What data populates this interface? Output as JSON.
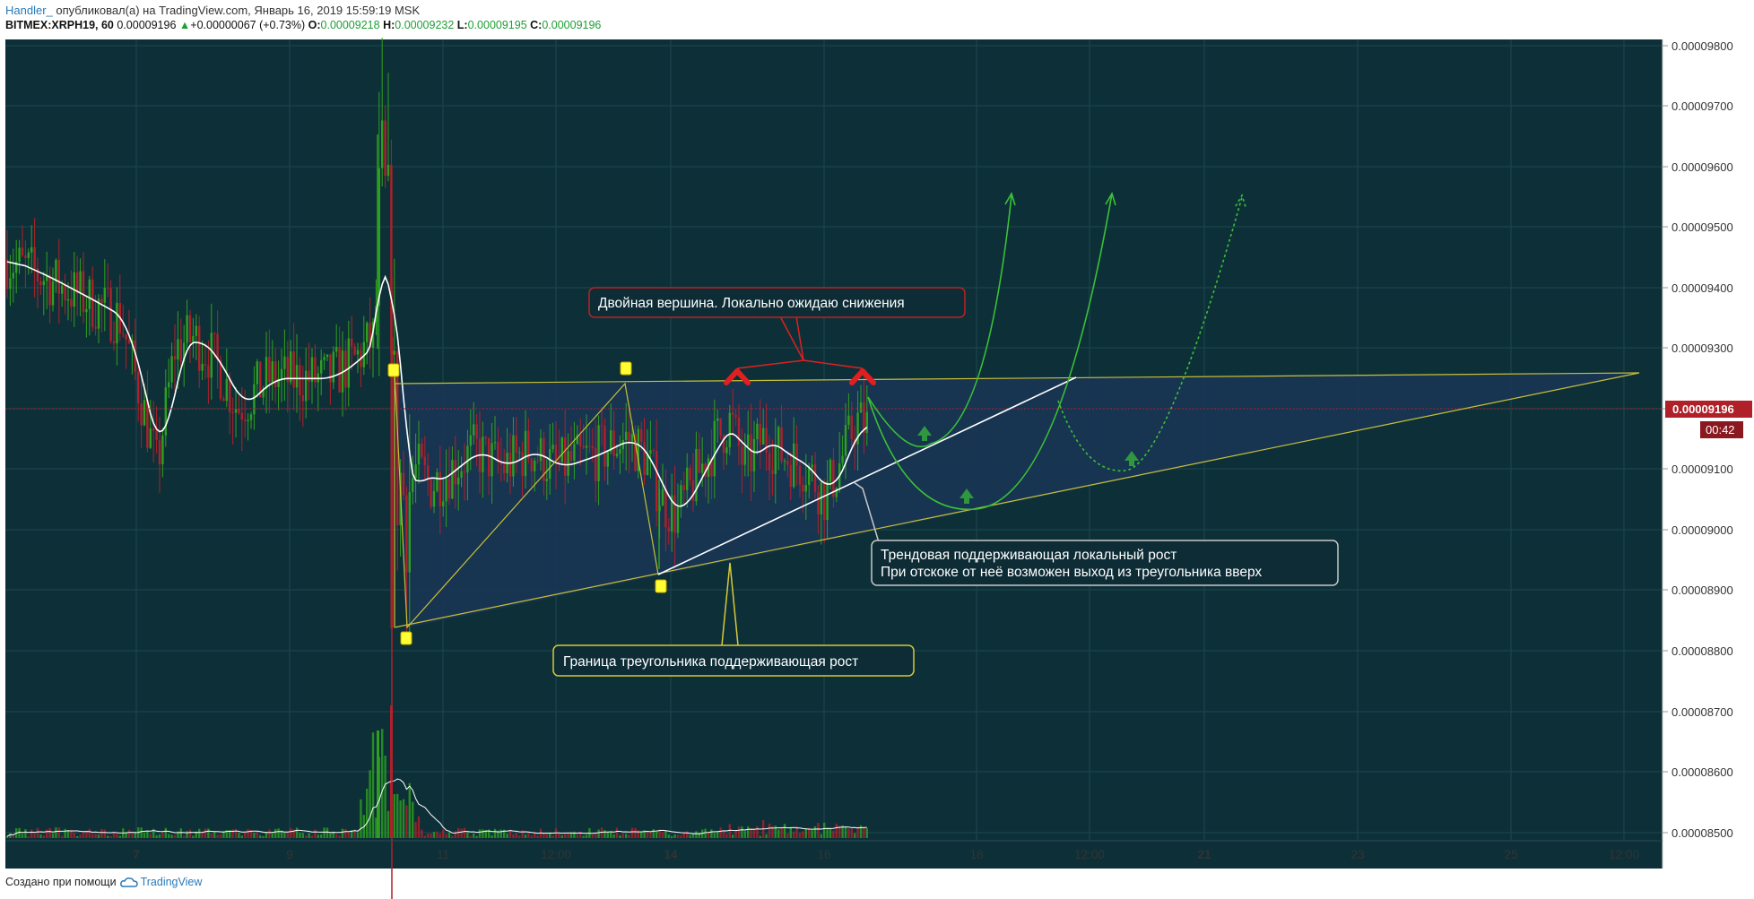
{
  "header": {
    "author": "Handler_",
    "published": " опубликовал(а) на TradingView.com, Январь 16, 2019 15:59:19 MSK",
    "symbol": "BITMEX:XRPH19, 60",
    "last": "0.00009196",
    "change_arrow": "▲",
    "change": "+0.00000067 (+0.73%)",
    "o_label": "O:",
    "o": "0.00009218",
    "h_label": "H:",
    "h": "0.00009232",
    "l_label": "L:",
    "l": "0.00009195",
    "c_label": "C:",
    "c": "0.00009196"
  },
  "footer": {
    "text": "Создано при помощи",
    "brand": "TradingView"
  },
  "colors": {
    "background": "#0d3038",
    "grid": "#1d4650",
    "up": "#2ea01f",
    "down": "#b0202a",
    "ma": "#ffffff",
    "triangle": "#c8c038",
    "projection": "#3cc038",
    "price_tag": "#b02028"
  },
  "price_axis": {
    "ticks": [
      "0.00009800",
      "0.00009700",
      "0.00009600",
      "0.00009500",
      "0.00009400",
      "0.00009300",
      "0.00009200",
      "0.00009100",
      "0.00009000",
      "0.00008900",
      "0.00008800",
      "0.00008700",
      "0.00008600",
      "0.00008500"
    ],
    "current_price": "0.00009196",
    "countdown": "00:42"
  },
  "time_axis": {
    "ticks": [
      "7",
      "9",
      "11",
      "12:00",
      "14",
      "16",
      "18",
      "12:00",
      "21",
      "23",
      "25",
      "12:00"
    ],
    "bold_ticks": [
      "7",
      "14",
      "21"
    ]
  },
  "annotations": {
    "double_top": "Двойная вершина. Локально ожидаю снижения",
    "trend_line_1": "Трендовая поддерживающая локальный рост",
    "trend_line_2": "При отскоке от неё возможен выход из треугольника вверх",
    "triangle_border": "Граница треугольника поддерживающая рост"
  },
  "chart_data": {
    "type": "candlestick",
    "symbol": "BITMEX:XRPH19",
    "interval": "60",
    "y_range": [
      8.485e-05,
      9.82e-05
    ],
    "x_range_days": [
      "Jan 6",
      "Jan 26"
    ],
    "current_price": 9.196e-05,
    "annotation_levels": {
      "triangle_top": 9.25e-05,
      "triangle_bottom_start": 8.84e-05,
      "recent_low": 8.93e-05,
      "spike_high": 9.66e-05,
      "spike_low": 8.83e-05
    },
    "grid": true
  }
}
